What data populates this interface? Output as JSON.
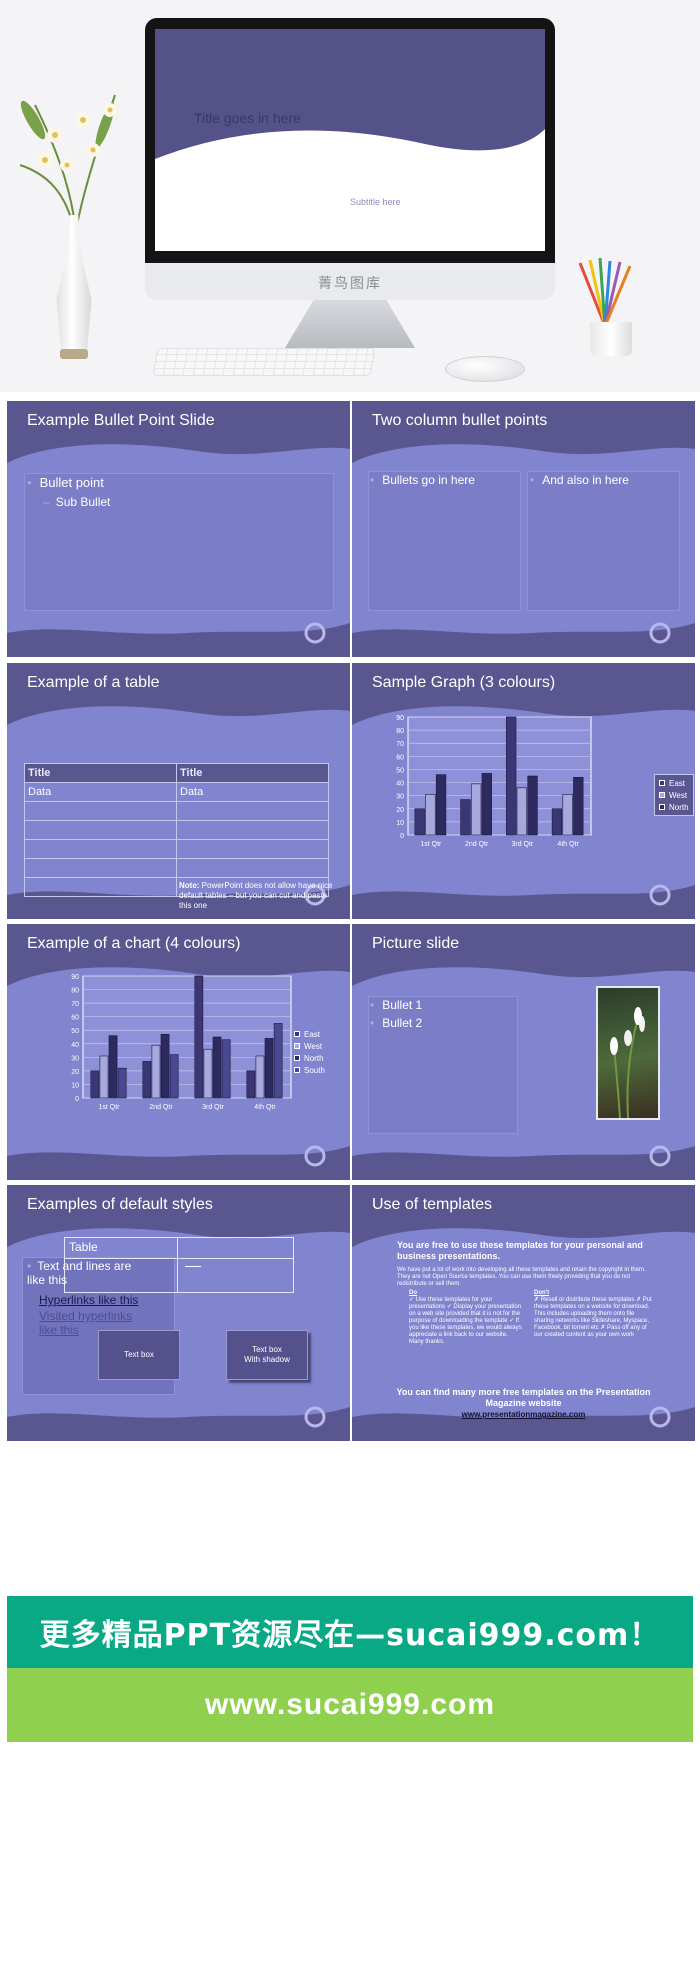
{
  "hero": {
    "screen_title": "Title goes in here",
    "screen_subtitle": "Subtitle here",
    "monitor_brand": "菁鸟图库"
  },
  "slides": [
    {
      "title": "Example Bullet Point Slide",
      "bullet": "Bullet point",
      "sub_bullet": "Sub Bullet"
    },
    {
      "title": "Two column bullet points",
      "left_bullet": "Bullets go in here",
      "right_bullet": "And also in here"
    },
    {
      "title": "Example of a table",
      "table": {
        "headers": [
          "Title",
          "Title"
        ],
        "rows": [
          [
            "Data",
            "Data"
          ],
          [
            "",
            ""
          ],
          [
            "",
            ""
          ],
          [
            "",
            ""
          ],
          [
            "",
            ""
          ],
          [
            "",
            ""
          ]
        ]
      },
      "note_label": "Note:",
      "note_text": " PowerPoint does not allow have nice default tables – but you can cut and paste this one"
    },
    {
      "title": "Sample Graph (3 colours)"
    },
    {
      "title": "Example of a chart (4 colours)"
    },
    {
      "title": "Picture slide",
      "bullets": [
        "Bullet 1",
        "Bullet 2"
      ]
    },
    {
      "title": "Examples of default styles",
      "table_label": "Table",
      "text_lines": "Text and lines are like this",
      "hyperlink": "Hyperlinks like this",
      "visited_hyperlink": "Visited hyperlinks like this",
      "text_box": "Text box",
      "text_box_shadow_1": "Text box",
      "text_box_shadow_2": "With shadow"
    },
    {
      "title": "Use of templates",
      "heading": "You are free to use these templates for your personal and business presentations.",
      "intro": "We have put a lot of work into developing all these templates and retain the copyright in them. They are not Open Source templates. You can use them freely providing that you do not redistribute or sell them.",
      "do_title": "Do",
      "do_text": "✓ Use these templates for your presentations ✓ Display your presentation on a web site provided that it is not for the purpose of downloading the template ✓ If you like these templates, we would always appreciate a link back to our website. Many thanks.",
      "dont_title": "Don't",
      "dont_text": "✗ Resell or distribute these templates ✗ Put these templates on a website for download. This includes uploading them onto file sharing networks like Slideshare, Myspace, Facebook, bit torrent etc ✗ Pass off any of our created content as your own work",
      "footer": "You can find many more free templates on the Presentation Magazine website",
      "link": "www.presentationmagazine.com"
    }
  ],
  "chart_data": [
    {
      "type": "bar",
      "categories": [
        "1st Qtr",
        "2nd Qtr",
        "3rd Qtr",
        "4th Qtr"
      ],
      "series": [
        {
          "name": "East",
          "values": [
            20,
            27,
            90,
            20
          ],
          "color": "#3b3775"
        },
        {
          "name": "West",
          "values": [
            31,
            39,
            36,
            31
          ],
          "color": "#a7a8dd"
        },
        {
          "name": "North",
          "values": [
            46,
            47,
            45,
            44
          ],
          "color": "#2c2a5e"
        }
      ],
      "ylim": [
        0,
        90
      ],
      "yticks": [
        0,
        10,
        20,
        30,
        40,
        50,
        60,
        70,
        80,
        90
      ],
      "grid": true,
      "legend": "right"
    },
    {
      "type": "bar",
      "categories": [
        "1st Qtr",
        "2nd Qtr",
        "3rd Qtr",
        "4th Qtr"
      ],
      "series": [
        {
          "name": "East",
          "values": [
            20,
            27,
            90,
            20
          ],
          "color": "#3b3775"
        },
        {
          "name": "West",
          "values": [
            31,
            39,
            36,
            31
          ],
          "color": "#a7a8dd"
        },
        {
          "name": "North",
          "values": [
            46,
            47,
            45,
            44
          ],
          "color": "#2c2a5e"
        },
        {
          "name": "South",
          "values": [
            22,
            32,
            43,
            55
          ],
          "color": "#4a4890"
        }
      ],
      "ylim": [
        0,
        90
      ],
      "yticks": [
        0,
        10,
        20,
        30,
        40,
        50,
        60,
        70,
        80,
        90
      ],
      "grid": true,
      "legend": "right"
    }
  ],
  "banners": {
    "teal": "更多精品PPT资源尽在—sucai999.com！",
    "green": "www.sucai999.com"
  },
  "colors": {
    "slide_dark": "#5a5690",
    "slide_light": "#8184cf",
    "banner_teal": "#0aa986",
    "banner_green": "#8fd14f"
  }
}
